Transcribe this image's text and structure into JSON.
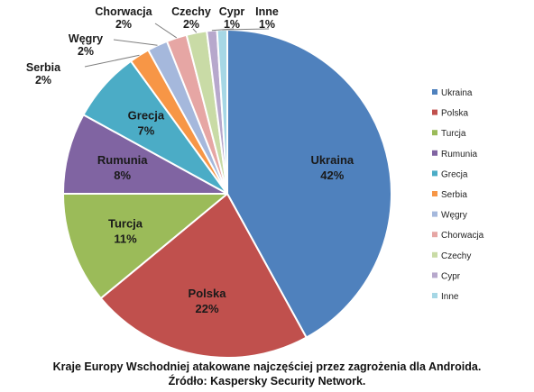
{
  "chart_data": {
    "type": "pie",
    "slices": [
      {
        "name": "Ukraina",
        "value": 42,
        "label": "42%",
        "color": "#4F81BD"
      },
      {
        "name": "Polska",
        "value": 22,
        "label": "22%",
        "color": "#C0504D"
      },
      {
        "name": "Turcja",
        "value": 11,
        "label": "11%",
        "color": "#9BBB59"
      },
      {
        "name": "Rumunia",
        "value": 8,
        "label": "8%",
        "color": "#8064A2"
      },
      {
        "name": "Grecja",
        "value": 7,
        "label": "7%",
        "color": "#4BACC6"
      },
      {
        "name": "Serbia",
        "value": 2,
        "label": "2%",
        "color": "#F79646"
      },
      {
        "name": "Węgry",
        "value": 2,
        "label": "2%",
        "color": "#A5B8DC"
      },
      {
        "name": "Chorwacja",
        "value": 2,
        "label": "2%",
        "color": "#E6A6A4"
      },
      {
        "name": "Czechy",
        "value": 2,
        "label": "2%",
        "color": "#C9DBA6"
      },
      {
        "name": "Cypr",
        "value": 1,
        "label": "1%",
        "color": "#B7A8CC"
      },
      {
        "name": "Inne",
        "value": 1,
        "label": "1%",
        "color": "#A6D7E5"
      }
    ],
    "legend_position": "right"
  },
  "caption": {
    "line1": "Kraje Europy Wschodniej atakowane najczęściej przez zagrożenia dla Androida.",
    "line2": "Źródło: Kaspersky Security Network."
  }
}
